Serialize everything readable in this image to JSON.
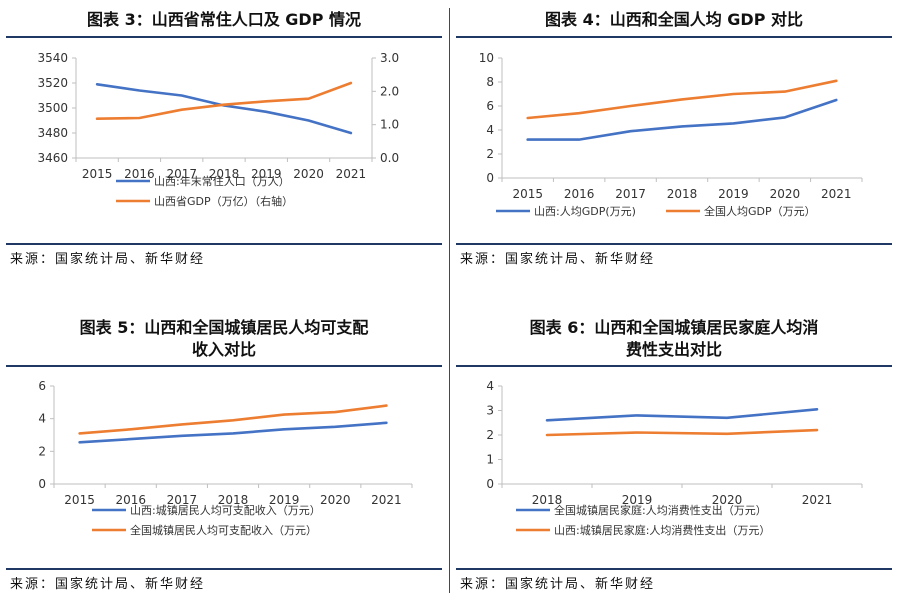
{
  "source_text": "来源：国家统计局、新华财经",
  "chart_data": [
    {
      "type": "line",
      "title": "图表 3：山西省常住人口及 GDP 情况",
      "categories": [
        "2015",
        "2016",
        "2017",
        "2018",
        "2019",
        "2020",
        "2021"
      ],
      "ylim": [
        3460,
        3540
      ],
      "yticks": [
        "3460",
        "3480",
        "3500",
        "3520",
        "3540"
      ],
      "y2lim": [
        0.0,
        3.0
      ],
      "y2ticks": [
        "0.0",
        "1.0",
        "2.0",
        "3.0"
      ],
      "series": [
        {
          "name": "山西:年末常住人口（万人）",
          "axis": "left",
          "color": "#4472c4",
          "values": [
            3519,
            3514,
            3510,
            3502,
            3497,
            3490,
            3480
          ]
        },
        {
          "name": "山西省GDP（万亿）（右轴）",
          "axis": "right",
          "color": "#ed7d31",
          "values": [
            1.18,
            1.2,
            1.45,
            1.6,
            1.7,
            1.78,
            2.25
          ]
        }
      ]
    },
    {
      "type": "line",
      "title": "图表 4：山西和全国人均 GDP 对比",
      "categories": [
        "2015",
        "2016",
        "2017",
        "2018",
        "2019",
        "2020",
        "2021"
      ],
      "ylim": [
        0,
        10
      ],
      "yticks": [
        "0",
        "2",
        "4",
        "6",
        "8",
        "10"
      ],
      "legend_layout": "row",
      "series": [
        {
          "name": "山西:人均GDP(万元)",
          "color": "#4472c4",
          "values": [
            3.2,
            3.2,
            3.9,
            4.3,
            4.55,
            5.05,
            6.5
          ]
        },
        {
          "name": "全国人均GDP（万元）",
          "color": "#ed7d31",
          "values": [
            5.0,
            5.4,
            6.0,
            6.55,
            7.0,
            7.2,
            8.1
          ]
        }
      ]
    },
    {
      "type": "line",
      "title": "图表 5：山西和全国城镇居民人均可支配收入对比",
      "title_lines": [
        "图表 5：山西和全国城镇居民人均可支配",
        "收入对比"
      ],
      "categories": [
        "2015",
        "2016",
        "2017",
        "2018",
        "2019",
        "2020",
        "2021"
      ],
      "ylim": [
        0,
        6
      ],
      "yticks": [
        "0",
        "2",
        "4",
        "6"
      ],
      "series": [
        {
          "name": "山西:城镇居民人均可支配收入（万元）",
          "color": "#4472c4",
          "values": [
            2.55,
            2.75,
            2.95,
            3.1,
            3.35,
            3.5,
            3.75
          ]
        },
        {
          "name": "全国城镇居民人均可支配收入（万元）",
          "color": "#ed7d31",
          "values": [
            3.1,
            3.35,
            3.65,
            3.9,
            4.25,
            4.4,
            4.8
          ]
        }
      ]
    },
    {
      "type": "line",
      "title": "图表 6：山西和全国城镇居民家庭人均消费性支出对比",
      "title_lines": [
        "图表 6：山西和全国城镇居民家庭人均消",
        "费性支出对比"
      ],
      "categories": [
        "2018",
        "2019",
        "2020",
        "2021"
      ],
      "ylim": [
        0,
        4
      ],
      "yticks": [
        "0",
        "1",
        "2",
        "3",
        "4"
      ],
      "series": [
        {
          "name": "全国城镇居民家庭:人均消费性支出（万元）",
          "color": "#4472c4",
          "values": [
            2.6,
            2.8,
            2.7,
            3.05
          ]
        },
        {
          "name": "山西:城镇居民家庭:人均消费性支出（万元）",
          "color": "#ed7d31",
          "values": [
            2.0,
            2.1,
            2.05,
            2.2
          ]
        }
      ]
    }
  ]
}
